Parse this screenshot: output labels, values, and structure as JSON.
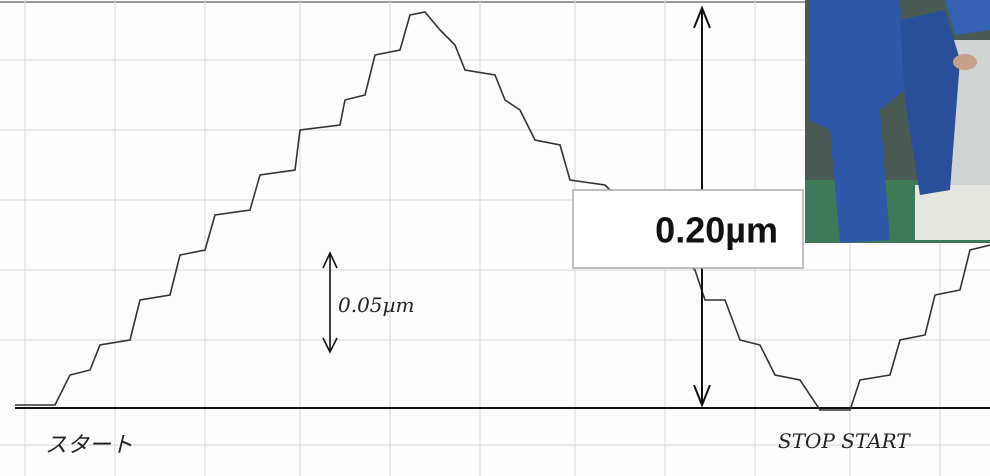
{
  "annotations": {
    "amplitude_box": "0.20µm",
    "step_label": "0.05µm",
    "start_label": "スタート",
    "stop_start_label": "STOP START"
  }
}
